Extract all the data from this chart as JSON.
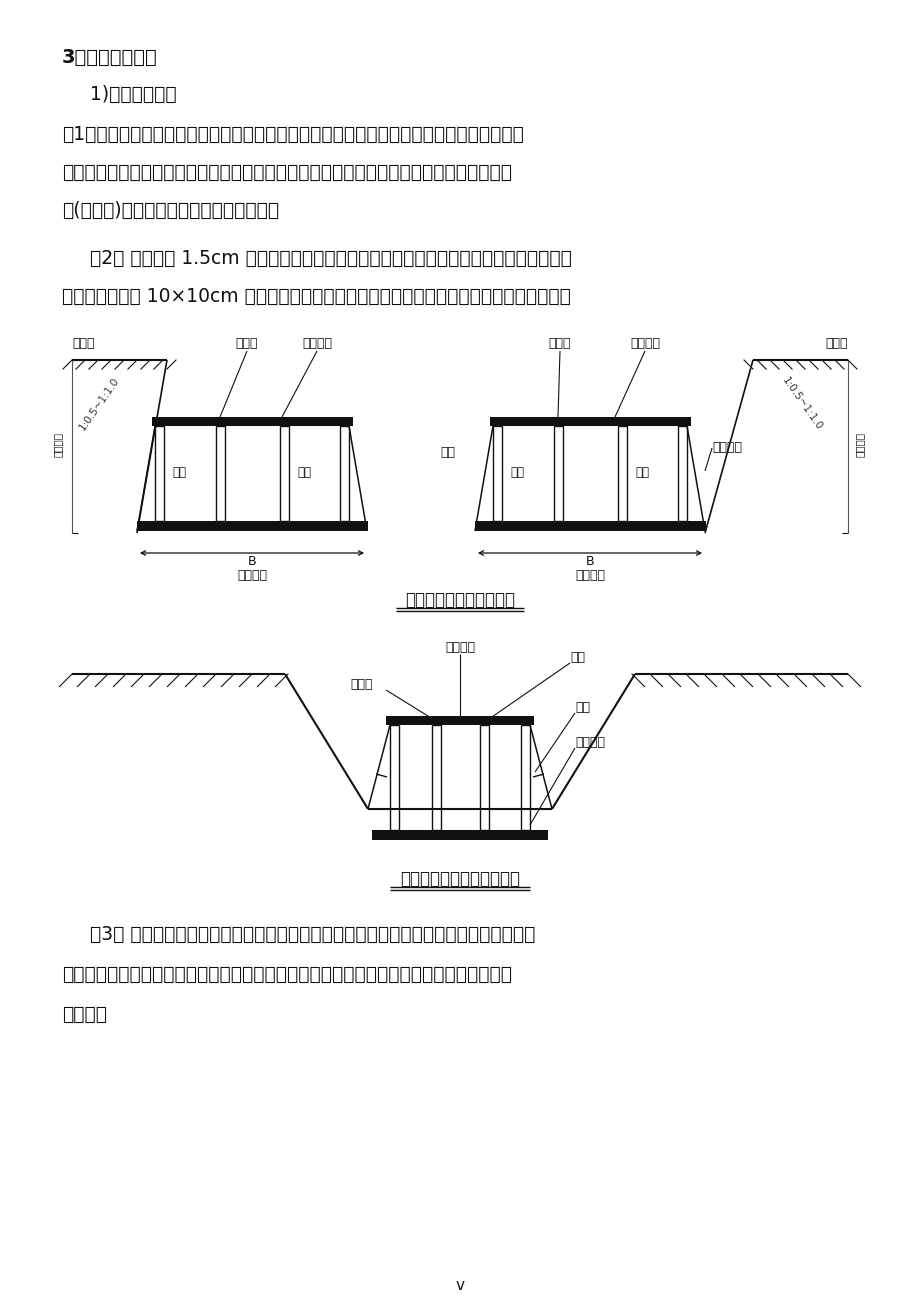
{
  "bg_color": "#ffffff",
  "text_color": "#000000",
  "title1": "3、涵洞基础施工",
  "subtitle1": "1)模板制作安装",
  "para1_line1": "（1）测量放样定出基础中心线并经监理工程师确认后方可进行模板安装。模板安装前先用全",
  "para1_line2": "站仪放设出基础边缘控制点（角点、边缘线控制点）用钉筋桦打入固定，再用红油漆在控制",
  "para1_line3": "点(钉筋桦)上画出模板安装的标高控制线。",
  "para2_line1": "（2） 模板采用 1.5cm 厚的竹胶板与方木拼装而成，根据基础的断面尺寸，调整模板的拼",
  "para2_line2": "装。模板四周用 10×10cm 方木作支撑固定，模板要求有一定的强度、刚度，以防模板变形。",
  "diagram1_caption": "分离式基础模板支撑示意",
  "diagram2_caption": "整体式基础模板支撑示意图",
  "para3_line1": "（3） 模板安装前先清除表面的污迹，在表面均匀涂抹一层脱模剂，并检测表面平整度，",
  "para3_line2": "复测模板轴线偏位、垂直度是否符合设计规范要求，若达不到规定要求则进行调整，直至准",
  "para3_line3": "确为止。",
  "page_number": "v",
  "label_yuandimian": "原地面",
  "label_duila": "对拉杆",
  "label_zonghemu": "纵向动木",
  "label_mban": "模板",
  "label_zhicheng": "支撑",
  "label_henghemu": "横向动木",
  "label_jichuandu": "基础宽度",
  "label_jichumaishens": "基础埋深",
  "label_B": "B"
}
